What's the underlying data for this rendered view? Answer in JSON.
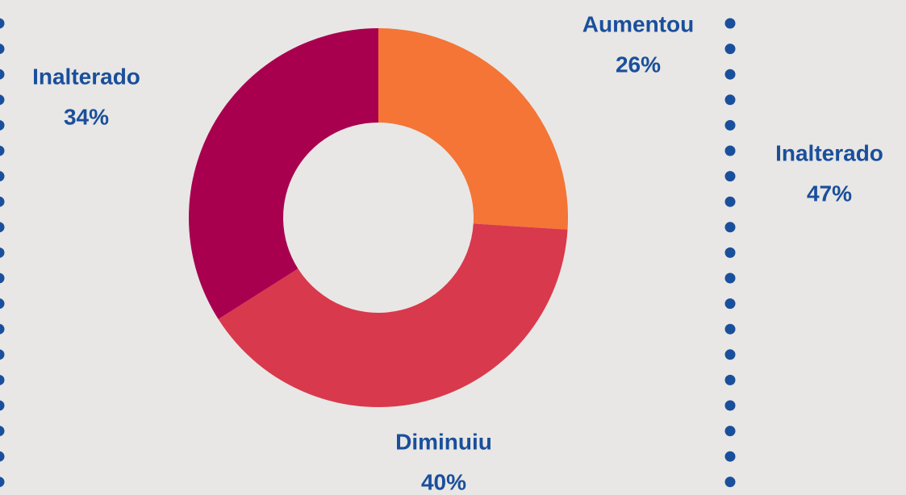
{
  "chart_data": [
    {
      "type": "donut",
      "categories": [
        "Aumentou",
        "Diminuiu",
        "Inalterado"
      ],
      "values": [
        26,
        40,
        34
      ],
      "value_labels": [
        "26%",
        "40%",
        "34%"
      ],
      "colors": [
        "#f47536",
        "#d9394c",
        "#a8004f"
      ]
    },
    {
      "type": "donut",
      "categories": [
        "Inalterado"
      ],
      "values": [
        47
      ],
      "value_labels": [
        "47%"
      ]
    }
  ]
}
